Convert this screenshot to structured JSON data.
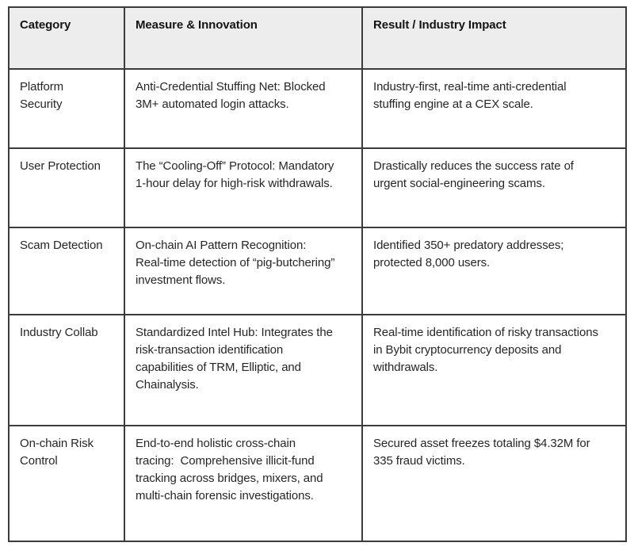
{
  "colors": {
    "header_bg": "#ededed",
    "border": "#3b3b3b",
    "header_text": "#141414",
    "body_text": "#262626",
    "page_bg": "#ffffff"
  },
  "table": {
    "columns": [
      {
        "id": "category",
        "label": "Category"
      },
      {
        "id": "measure",
        "label": "Measure & Innovation"
      },
      {
        "id": "result",
        "label": "Result / Industry Impact"
      }
    ],
    "rows": [
      {
        "category": "Platform\nSecurity",
        "measure": "Anti-Credential Stuffing Net: Blocked\n3M+ automated login attacks.",
        "result": "Industry-first, real-time anti-credential\nstuffing engine at a CEX scale."
      },
      {
        "category": "User Protection",
        "measure": "The “Cooling-Off” Protocol: Mandatory\n1-hour delay for high-risk withdrawals.",
        "result": "Drastically reduces the success rate of\nurgent social-engineering scams."
      },
      {
        "category": "Scam Detection",
        "measure": "On-chain AI Pattern Recognition:\nReal-time detection of “pig-butchering”\ninvestment flows.",
        "result": "Identified 350+ predatory addresses;\nprotected 8,000 users."
      },
      {
        "category": "Industry Collab",
        "measure": "Standardized Intel Hub: Integrates the\nrisk-transaction identification\ncapabilities of TRM, Elliptic, and\nChainalysis.",
        "result": "Real-time identification of risky transactions\nin Bybit cryptocurrency deposits and\nwithdrawals."
      },
      {
        "category": "On-chain Risk\nControl",
        "measure": "End-to-end holistic cross-chain\ntracing:  Comprehensive illicit-fund\ntracking across bridges, mixers, and\nmulti-chain forensic investigations.",
        "result": "Secured asset freezes totaling $4.32M for\n335 fraud victims."
      }
    ]
  }
}
